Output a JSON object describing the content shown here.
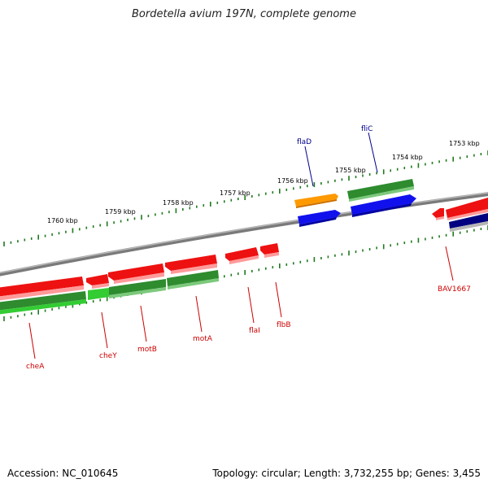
{
  "title": "Bordetella avium 197N, complete genome",
  "footer": {
    "accession": "Accession: NC_010645",
    "summary": "Topology: circular; Length: 3,732,255 bp; Genes: 3,455"
  },
  "colors": {
    "backbone": "#8c8c8c",
    "ticks": "#1f7a1f",
    "label_blue": "#00008b",
    "label_red": "#cc0000",
    "gene_red": "#ee1111",
    "gene_dark_green": "#2e8b2e",
    "gene_light_green": "#33cc33",
    "gene_blue": "#1111ee",
    "gene_orange": "#ff9900",
    "gene_navy": "#000080"
  },
  "scale_labels": [
    "1760 kbp",
    "1759 kbp",
    "1758 kbp",
    "1757 kbp",
    "1756 kbp",
    "1755 kbp",
    "1754 kbp",
    "1753 kbp"
  ],
  "gene_labels": {
    "above": [
      "flaD",
      "fliC"
    ],
    "below": [
      "cheA",
      "cheY",
      "motB",
      "motA",
      "flaI",
      "flbB",
      "BAV1667"
    ]
  }
}
